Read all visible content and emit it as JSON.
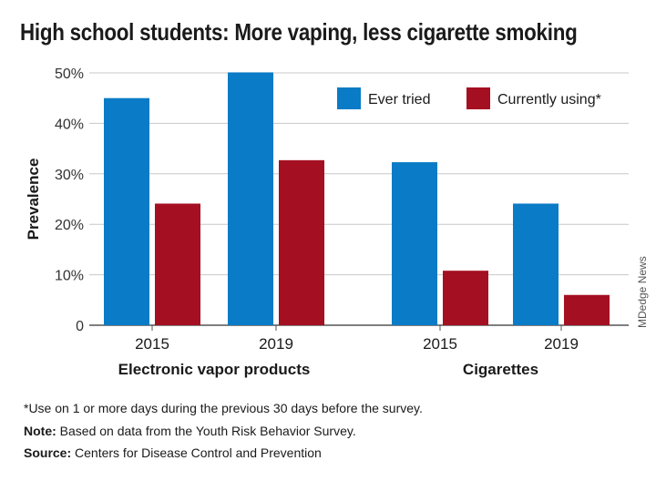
{
  "title": "High school students: More vaping, less cigarette smoking",
  "chart_data": {
    "type": "bar",
    "groups": [
      {
        "label": "Electronic vapor products",
        "categories": [
          "2015",
          "2019"
        ]
      },
      {
        "label": "Cigarettes",
        "categories": [
          "2015",
          "2019"
        ]
      }
    ],
    "series": [
      {
        "name": "Ever tried",
        "color": "#0a7bc6",
        "values": [
          45,
          50.1,
          32.3,
          24.1
        ]
      },
      {
        "name": "Currently using*",
        "color": "#a50f22",
        "values": [
          24.1,
          32.7,
          10.8,
          6.0
        ]
      }
    ],
    "ylabel": "Prevalence",
    "ylim": [
      0,
      50
    ],
    "yticks": [
      "0",
      "10%",
      "20%",
      "30%",
      "40%",
      "50%"
    ],
    "grid": true,
    "legend": "top-right"
  },
  "notes": {
    "footnote": "*Use on 1 or more days during the previous 30 days before the survey.",
    "note_label": "Note:",
    "note_text": " Based on data from the Youth Risk Behavior Survey.",
    "source_label": "Source:",
    "source_text": " Centers for Disease Control and Prevention"
  },
  "credit": "MDedge News"
}
